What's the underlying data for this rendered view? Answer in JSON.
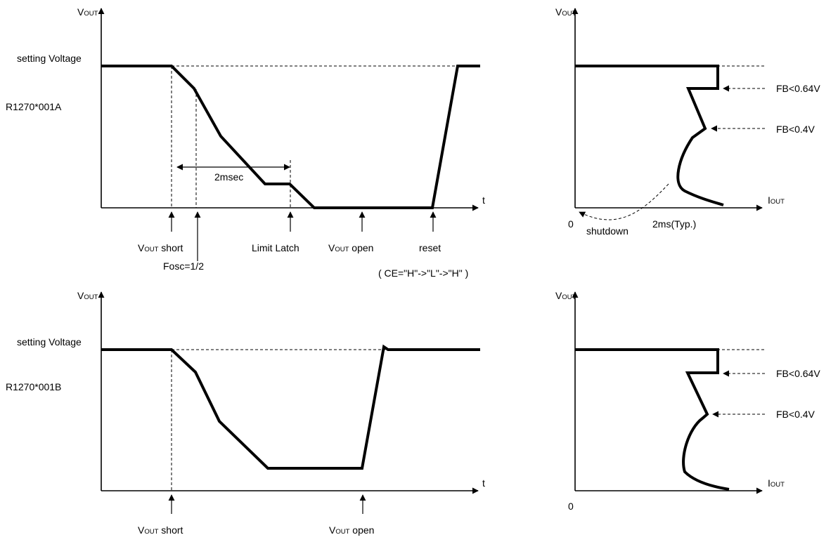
{
  "colors": {
    "ink": "#000000",
    "background": "#ffffff"
  },
  "axes": {
    "v_main": "V",
    "v_sub": "OUT",
    "t": "t",
    "i_main": "I",
    "i_sub": "OUT",
    "zero": "0"
  },
  "top": {
    "setting_voltage": "setting Voltage",
    "part": "R1270*001A",
    "duration": "2msec",
    "events": {
      "short_sub": "OUT",
      "short_text": " short",
      "fosc": "Fosc=1/2",
      "limit_latch": "Limit Latch",
      "open_sub": "OUT",
      "open_text": " open",
      "reset": "reset",
      "ce_sequence": "( CE=\"H\"->\"L\"->\"H\" )"
    },
    "right": {
      "fb1": "FB<0.64V",
      "fb2": "FB<0.4V",
      "shutdown": "shutdown",
      "typ": "2ms(Typ.)"
    }
  },
  "bottom": {
    "setting_voltage": "setting Voltage",
    "part": "R1270*001B",
    "events": {
      "short_sub": "OUT",
      "short_text": " short",
      "open_sub": "OUT",
      "open_text": " open"
    },
    "right": {
      "fb1": "FB<0.64V",
      "fb2": "FB<0.4V"
    }
  }
}
